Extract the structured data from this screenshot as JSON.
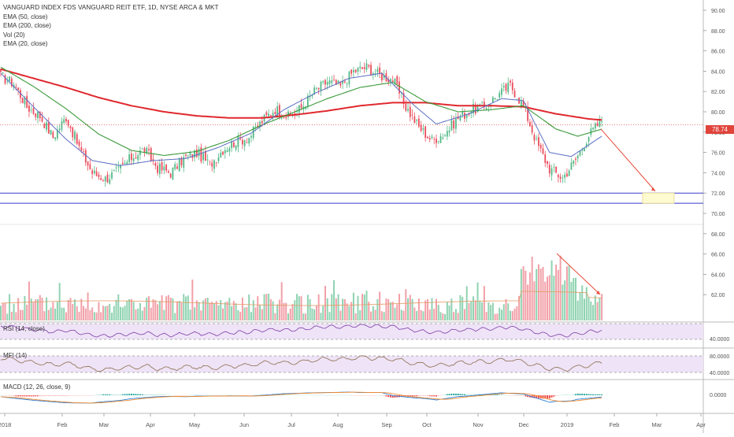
{
  "chart_data": {
    "type": "candlestick",
    "title": "VANGUARD INDEX FDS VANGUARD REIT ETF, 1D, NYSE ARCA & MKT",
    "overlays": [
      "EMA (50, close)",
      "EMA (200, close)",
      "Vol (20)",
      "EMA (20, close)"
    ],
    "x_labels": [
      "2018",
      "Feb",
      "Mar",
      "Apr",
      "May",
      "Jun",
      "Jul",
      "Aug",
      "Sep",
      "Oct",
      "Nov",
      "Dec",
      "2019",
      "Feb",
      "Mar",
      "Apr"
    ],
    "y_ticks": [
      "90.00",
      "88.00",
      "86.00",
      "84.00",
      "82.00",
      "80.00",
      "78.00",
      "76.00",
      "74.00",
      "72.00",
      "70.00",
      "68.00",
      "66.00",
      "64.00",
      "62.00"
    ],
    "ylim": [
      61,
      91
    ],
    "last_price": "78.74",
    "support_levels": [
      72.0,
      71.0
    ],
    "close_path": [
      [
        0,
        83.5
      ],
      [
        6,
        82.8
      ],
      [
        12,
        80.5
      ],
      [
        18,
        79.6
      ],
      [
        24,
        77.5
      ],
      [
        30,
        79.5
      ],
      [
        36,
        76.5
      ],
      [
        42,
        74.0
      ],
      [
        48,
        73.4
      ],
      [
        54,
        74.2
      ],
      [
        60,
        75.5
      ],
      [
        66,
        76.3
      ],
      [
        72,
        74.5
      ],
      [
        78,
        74.0
      ],
      [
        84,
        75.4
      ],
      [
        90,
        76.0
      ],
      [
        96,
        74.8
      ],
      [
        102,
        76.3
      ],
      [
        108,
        77.1
      ],
      [
        114,
        77.5
      ],
      [
        120,
        79.1
      ],
      [
        126,
        80.3
      ],
      [
        132,
        79.5
      ],
      [
        138,
        80.4
      ],
      [
        144,
        82.0
      ],
      [
        150,
        83.0
      ],
      [
        156,
        82.5
      ],
      [
        162,
        84.0
      ],
      [
        168,
        84.4
      ],
      [
        174,
        83.6
      ],
      [
        180,
        83.2
      ],
      [
        186,
        80.5
      ],
      [
        192,
        78.5
      ],
      [
        198,
        77.2
      ],
      [
        204,
        77.9
      ],
      [
        210,
        79.4
      ],
      [
        216,
        80.2
      ],
      [
        222,
        80.5
      ],
      [
        228,
        81.6
      ],
      [
        234,
        82.6
      ],
      [
        240,
        80.6
      ],
      [
        246,
        77.0
      ],
      [
        252,
        74.4
      ],
      [
        258,
        73.5
      ],
      [
        264,
        75.3
      ],
      [
        270,
        77.7
      ],
      [
        276,
        79.2
      ]
    ],
    "ema_200": [
      [
        0,
        84.2
      ],
      [
        15,
        83.3
      ],
      [
        30,
        82.4
      ],
      [
        45,
        81.4
      ],
      [
        60,
        80.6
      ],
      [
        75,
        80.0
      ],
      [
        90,
        79.6
      ],
      [
        105,
        79.4
      ],
      [
        120,
        79.4
      ],
      [
        135,
        79.7
      ],
      [
        150,
        80.1
      ],
      [
        165,
        80.6
      ],
      [
        180,
        80.9
      ],
      [
        195,
        80.9
      ],
      [
        210,
        80.6
      ],
      [
        225,
        80.6
      ],
      [
        240,
        80.5
      ],
      [
        255,
        79.8
      ],
      [
        270,
        79.3
      ],
      [
        276,
        79.2
      ]
    ],
    "ema_50": [
      [
        0,
        84.4
      ],
      [
        15,
        82.5
      ],
      [
        30,
        80.3
      ],
      [
        45,
        77.8
      ],
      [
        60,
        76.2
      ],
      [
        75,
        75.7
      ],
      [
        90,
        76.1
      ],
      [
        105,
        77.2
      ],
      [
        120,
        78.7
      ],
      [
        135,
        80.0
      ],
      [
        150,
        81.3
      ],
      [
        165,
        82.4
      ],
      [
        180,
        82.9
      ],
      [
        195,
        81.0
      ],
      [
        210,
        80.0
      ],
      [
        225,
        80.2
      ],
      [
        240,
        80.6
      ],
      [
        255,
        78.3
      ],
      [
        265,
        77.6
      ],
      [
        276,
        78.3
      ]
    ],
    "ema_20": [
      [
        0,
        83.8
      ],
      [
        15,
        80.5
      ],
      [
        30,
        77.3
      ],
      [
        42,
        75.2
      ],
      [
        55,
        74.7
      ],
      [
        70,
        75.2
      ],
      [
        85,
        75.4
      ],
      [
        100,
        76.5
      ],
      [
        115,
        77.9
      ],
      [
        130,
        80.2
      ],
      [
        145,
        81.9
      ],
      [
        160,
        83.3
      ],
      [
        175,
        83.8
      ],
      [
        190,
        80.6
      ],
      [
        200,
        78.8
      ],
      [
        215,
        79.8
      ],
      [
        230,
        81.3
      ],
      [
        240,
        81.1
      ],
      [
        252,
        76.0
      ],
      [
        262,
        75.6
      ],
      [
        276,
        77.6
      ]
    ],
    "volume_y_ticks": [],
    "rsi": {
      "label": "RSI (14, close)",
      "tick": "40.0000"
    },
    "mfi": {
      "label": "MFI (14)",
      "ticks": [
        "80.0000",
        "40.0000"
      ]
    },
    "macd": {
      "label": "MACD (12, 26, close, 9)",
      "tick": "0.0000"
    },
    "colors": {
      "up": "#53b987",
      "down": "#eb4d5c",
      "ema200": "#e0282e",
      "ema50": "#3b9b3b",
      "ema20": "#5b6ec2",
      "support": "#3a3acb",
      "projection": "#e84a3a"
    }
  }
}
